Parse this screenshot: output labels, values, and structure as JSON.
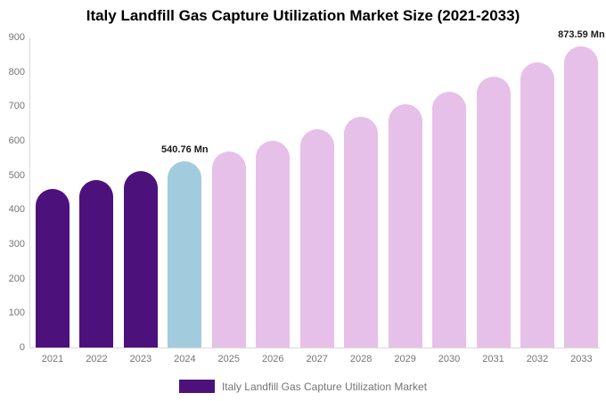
{
  "title": "Italy Landfill Gas Capture Utilization Market Size (2021-2033)",
  "chart_data": {
    "type": "bar",
    "title": "Italy Landfill Gas Capture Utilization Market Size (2021-2033)",
    "categories": [
      "2021",
      "2022",
      "2023",
      "2024",
      "2025",
      "2026",
      "2027",
      "2028",
      "2029",
      "2030",
      "2031",
      "2032",
      "2033"
    ],
    "values": [
      460,
      486,
      513,
      540.76,
      570,
      601,
      634,
      669,
      705,
      743,
      785,
      828,
      873.59
    ],
    "bar_colors": [
      "#4d117c",
      "#4d117c",
      "#4d117c",
      "#a3cbde",
      "#e6c0e8",
      "#e6c0e8",
      "#e6c0e8",
      "#e6c0e8",
      "#e6c0e8",
      "#e6c0e8",
      "#e6c0e8",
      "#e6c0e8",
      "#e6c0e8"
    ],
    "annotations": [
      {
        "category": "2024",
        "text": "540.76 Mn"
      },
      {
        "category": "2033",
        "text": "873.59 Mn"
      }
    ],
    "xlabel": "",
    "ylabel": "",
    "ylim": [
      0,
      900
    ],
    "ytick_step": 100,
    "grid": false,
    "legend_position": "bottom"
  },
  "legend": {
    "label": "Italy Landfill Gas Capture Utilization Market",
    "swatch_color": "#4d117c"
  },
  "colors": {
    "historical_bar": "#4d117c",
    "base_year_bar": "#a3cbde",
    "forecast_bar": "#e6c0e8",
    "axis_line": "#d9d9d9",
    "tick_text": "#757575",
    "title_text": "#000000",
    "annotation_text": "#1a1a1a"
  }
}
